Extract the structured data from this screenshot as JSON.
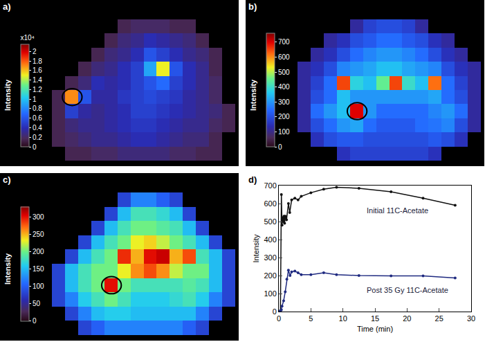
{
  "chart_data": [
    {
      "type": "heatmap",
      "label": "a)",
      "colorbar_title": "Intensity",
      "colorbar_exponent": "x10⁴",
      "zlim": [
        0,
        21500
      ],
      "zticks": [
        0,
        {
          "value": 2000,
          "label": "0.2"
        },
        {
          "value": 4000,
          "label": "0.4"
        },
        {
          "value": 6000,
          "label": "0.6"
        },
        {
          "value": 8000,
          "label": "0.8"
        },
        {
          "value": 10000,
          "label": "1"
        },
        {
          "value": 12000,
          "label": "1.2"
        },
        {
          "value": 14000,
          "label": "1.4"
        },
        {
          "value": 16000,
          "label": "1.6"
        },
        {
          "value": 18000,
          "label": "1.8"
        },
        {
          "value": 20000,
          "label": "2"
        }
      ],
      "tick_labels": false,
      "roi": [
        0.3,
        4.4,
        1.8,
        5.6
      ],
      "z": [
        [
          null,
          null,
          null,
          null,
          null,
          1500,
          2000,
          2000,
          2000,
          1500,
          1500,
          null,
          null,
          null
        ],
        [
          null,
          null,
          null,
          null,
          1500,
          2500,
          3000,
          4000,
          3500,
          3000,
          2500,
          1500,
          null,
          null
        ],
        [
          null,
          null,
          null,
          1500,
          2500,
          3000,
          4000,
          6000,
          5000,
          4000,
          3000,
          2500,
          1500,
          null
        ],
        [
          null,
          null,
          1500,
          2500,
          3000,
          4000,
          5000,
          9000,
          15000,
          6000,
          4000,
          3000,
          1500,
          null
        ],
        [
          null,
          1500,
          2500,
          4000,
          3500,
          4000,
          5000,
          6000,
          7000,
          5000,
          4000,
          3000,
          2000,
          null
        ],
        [
          1500,
          17000,
          6000,
          3500,
          3500,
          4500,
          5000,
          5500,
          5000,
          4500,
          3500,
          3000,
          2000,
          null
        ],
        [
          1500,
          5000,
          3500,
          3000,
          3500,
          4000,
          5000,
          5000,
          4500,
          4000,
          3500,
          3000,
          2500,
          1500
        ],
        [
          1500,
          2500,
          3000,
          3000,
          3500,
          4000,
          4500,
          4500,
          4000,
          3500,
          3000,
          3000,
          2000,
          1500
        ],
        [
          1500,
          2000,
          2500,
          3000,
          3000,
          3500,
          4000,
          4000,
          3500,
          3000,
          2500,
          2500,
          1500,
          null
        ],
        [
          null,
          1500,
          1500,
          2000,
          2000,
          2500,
          2500,
          2500,
          2500,
          2000,
          2000,
          1500,
          1500,
          null
        ]
      ]
    },
    {
      "type": "heatmap",
      "label": "b)",
      "colorbar_title": "Intensity",
      "zlim": [
        0,
        760
      ],
      "zticks": [
        0,
        100,
        200,
        300,
        400,
        500,
        600,
        700
      ],
      "tick_labels": false,
      "roi": [
        3.3,
        5.4,
        4.8,
        6.6
      ],
      "z": [
        [
          null,
          null,
          null,
          null,
          120,
          180,
          200,
          200,
          180,
          120,
          null,
          null,
          null,
          null
        ],
        [
          null,
          null,
          120,
          150,
          200,
          220,
          250,
          250,
          220,
          200,
          150,
          120,
          null,
          null
        ],
        [
          null,
          120,
          150,
          200,
          250,
          280,
          300,
          300,
          280,
          250,
          200,
          150,
          120,
          null
        ],
        [
          120,
          150,
          200,
          280,
          300,
          320,
          350,
          350,
          320,
          300,
          280,
          200,
          150,
          120
        ],
        [
          120,
          180,
          250,
          650,
          380,
          350,
          450,
          650,
          400,
          350,
          620,
          250,
          180,
          120
        ],
        [
          120,
          200,
          250,
          350,
          300,
          300,
          300,
          300,
          300,
          300,
          320,
          250,
          200,
          120
        ],
        [
          120,
          250,
          300,
          350,
          700,
          300,
          250,
          250,
          250,
          250,
          280,
          300,
          250,
          120
        ],
        [
          120,
          200,
          250,
          300,
          320,
          250,
          220,
          220,
          220,
          250,
          260,
          280,
          200,
          120
        ],
        [
          null,
          150,
          200,
          220,
          220,
          200,
          200,
          200,
          200,
          200,
          220,
          200,
          150,
          null
        ],
        [
          null,
          null,
          null,
          150,
          180,
          180,
          180,
          180,
          180,
          180,
          150,
          null,
          null,
          null
        ]
      ]
    },
    {
      "type": "heatmap",
      "label": "c)",
      "colorbar_title": "Intensity",
      "zlim": [
        0,
        330
      ],
      "zticks": [
        0,
        50,
        100,
        150,
        200,
        250,
        300
      ],
      "tick_labels": false,
      "roi": [
        3.3,
        5.4,
        4.8,
        6.6
      ],
      "z": [
        [
          null,
          null,
          null,
          null,
          null,
          80,
          120,
          120,
          100,
          80,
          null,
          null,
          null,
          null
        ],
        [
          null,
          null,
          null,
          null,
          80,
          150,
          180,
          180,
          170,
          150,
          80,
          null,
          null,
          null
        ],
        [
          null,
          null,
          null,
          80,
          150,
          180,
          200,
          200,
          190,
          180,
          150,
          80,
          null,
          null
        ],
        [
          null,
          null,
          80,
          150,
          180,
          200,
          230,
          240,
          220,
          200,
          180,
          150,
          80,
          null
        ],
        [
          null,
          80,
          150,
          180,
          200,
          290,
          250,
          300,
          310,
          250,
          280,
          180,
          150,
          80
        ],
        [
          80,
          150,
          180,
          200,
          200,
          230,
          260,
          280,
          260,
          220,
          200,
          200,
          150,
          80
        ],
        [
          80,
          150,
          180,
          200,
          300,
          200,
          180,
          180,
          180,
          180,
          190,
          180,
          150,
          80
        ],
        [
          80,
          120,
          160,
          180,
          200,
          180,
          160,
          160,
          160,
          170,
          180,
          160,
          120,
          80
        ],
        [
          null,
          80,
          120,
          150,
          160,
          160,
          150,
          150,
          150,
          150,
          150,
          120,
          80,
          null
        ],
        [
          null,
          null,
          80,
          100,
          120,
          120,
          120,
          120,
          120,
          120,
          100,
          80,
          null,
          null
        ]
      ]
    },
    {
      "type": "line",
      "label": "d)",
      "x_label": "Time (min)",
      "y_label": "Intensity",
      "xlim": [
        0,
        30
      ],
      "xticks": [
        0,
        5,
        10,
        15,
        20,
        25,
        30
      ],
      "ylim": [
        0,
        700
      ],
      "yticks": [
        0,
        100,
        200,
        300,
        400,
        500,
        600,
        700
      ],
      "grid": false,
      "annotations": [
        {
          "text": "Initial 11C-Acetate",
          "x": 13.5,
          "y": 560
        },
        {
          "text": "Post 35 Gy 11C-Acetate",
          "x": 13.5,
          "y": 120
        }
      ],
      "series": [
        {
          "color": "#111111",
          "marker": "circle",
          "x": [
            0.1,
            0.25,
            0.4,
            0.5,
            0.6,
            0.7,
            0.8,
            0.9,
            1.0,
            1.1,
            1.2,
            1.5,
            1.7,
            2.0,
            2.5,
            3.0,
            3.5,
            5,
            7,
            9,
            12.5,
            17.5,
            22.5,
            27.5
          ],
          "values": [
            0,
            5,
            650,
            480,
            520,
            500,
            530,
            490,
            530,
            520,
            510,
            600,
            550,
            620,
            630,
            620,
            640,
            660,
            680,
            690,
            685,
            665,
            630,
            590
          ]
        },
        {
          "color": "#1f2a80",
          "marker": "circle",
          "x": [
            0.1,
            0.25,
            0.4,
            0.5,
            0.75,
            1.0,
            1.25,
            1.5,
            1.75,
            2.0,
            2.5,
            3.0,
            3.5,
            5,
            7,
            9,
            12.5,
            17.5,
            22.5,
            27.5
          ],
          "values": [
            0,
            5,
            10,
            30,
            60,
            110,
            180,
            230,
            200,
            220,
            225,
            215,
            205,
            205,
            215,
            205,
            200,
            198,
            198,
            187
          ]
        }
      ]
    }
  ]
}
